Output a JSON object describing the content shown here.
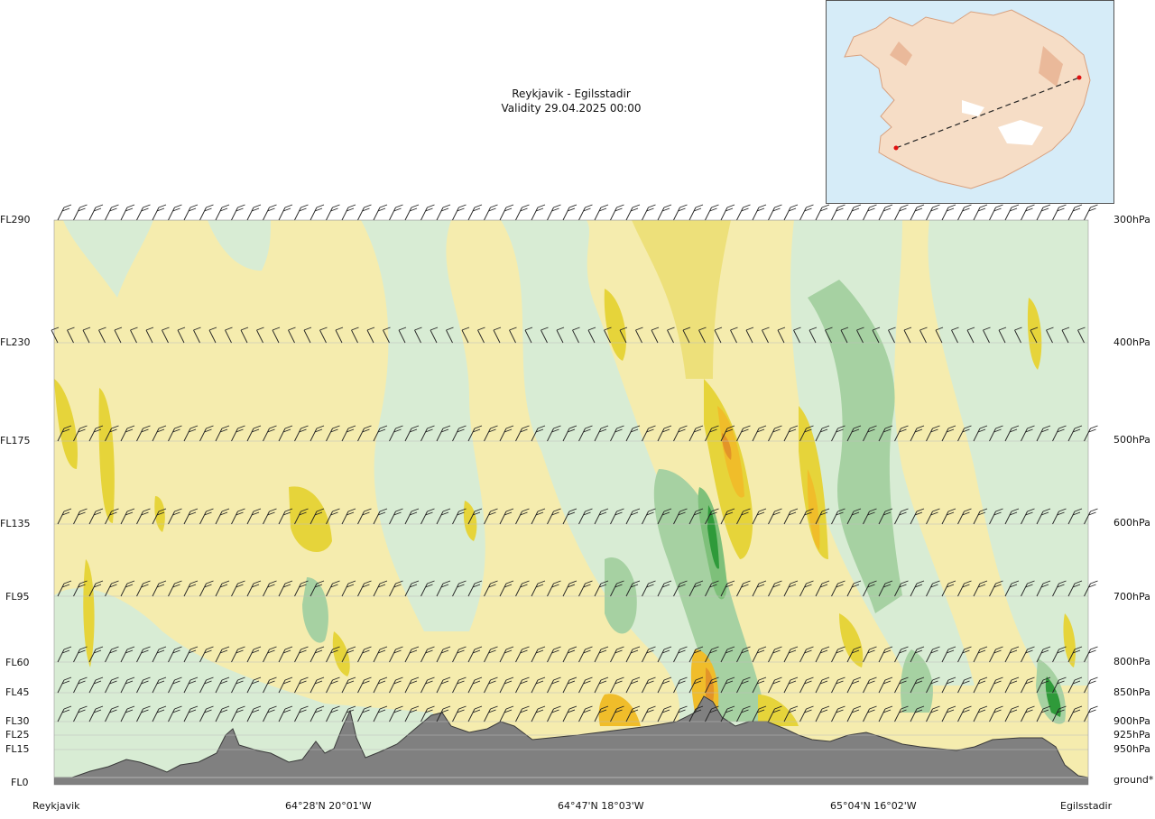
{
  "chart": {
    "title_line1": "Reykjavik - Egilsstadir",
    "title_line2": "Validity 29.04.2025 00:00"
  },
  "chart_data": {
    "type": "cross-section",
    "title": "Reykjavik - Egilsstadir",
    "subtitle": "Validity 29.04.2025 00:00",
    "left_axis_ticks": [
      "FL290",
      "FL230",
      "FL175",
      "FL135",
      "FL95",
      "FL60",
      "FL45",
      "FL30",
      "FL25",
      "FL15",
      "FL0"
    ],
    "right_axis_ticks": [
      "300hPa",
      "400hPa",
      "500hPa",
      "600hPa",
      "700hPa",
      "800hPa",
      "850hPa",
      "900hPa",
      "925hPa",
      "950hPa",
      "ground*"
    ],
    "x_tick_labels": [
      "Reykjavik",
      "64°28'N 20°01'W",
      "64°47'N 18°03'W",
      "65°04'N 16°02'W",
      "Egilsstadir"
    ],
    "route": {
      "start": "Reykjavik",
      "end": "Egilsstadir"
    },
    "colors": {
      "terrain": "#808080",
      "yellow_light": "#f5ecae",
      "yellow": "#ede07a",
      "yellow_strong": "#e6d43a",
      "orange": "#f0bd2a",
      "orange_red": "#e39428",
      "green_light": "#d8ecd4",
      "green": "#bfe0bd",
      "green_mid": "#a6d1a2",
      "green_strong": "#7ec07a",
      "green_dark": "#2f9a3a",
      "white_band": "#f7fbe9"
    },
    "grid": true
  },
  "map_inset": {
    "icon": "iceland-route-map-icon"
  }
}
